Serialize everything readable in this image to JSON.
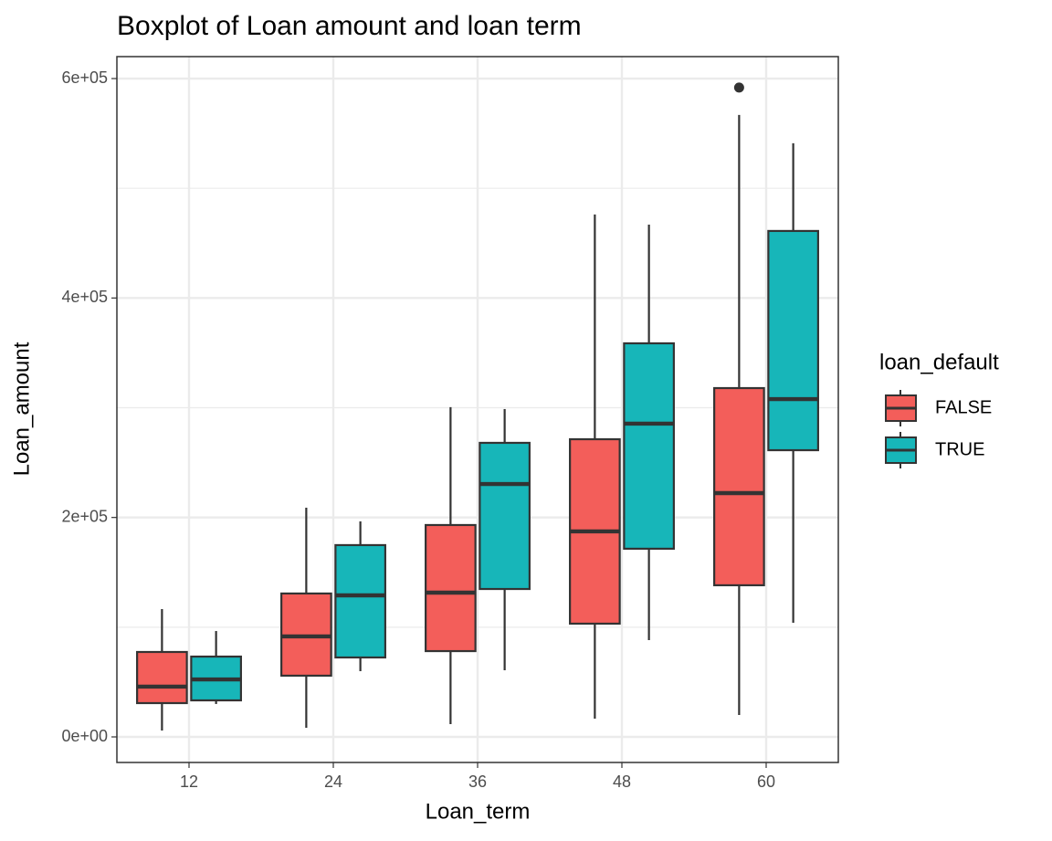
{
  "chart_data": {
    "type": "boxplot",
    "title": "Boxplot of Loan amount and loan term",
    "x_label": "Loan_term",
    "y_label": "Loan_amount",
    "legend_title": "loan_default",
    "categories": [
      "12",
      "24",
      "36",
      "48",
      "60"
    ],
    "ylim": [
      -23300,
      620000
    ],
    "yticks": [
      {
        "value": 0,
        "label": "0e+00"
      },
      {
        "value": 200000,
        "label": "2e+05"
      },
      {
        "value": 400000,
        "label": "4e+05"
      },
      {
        "value": 600000,
        "label": "6e+05"
      }
    ],
    "minor_yticks": [
      100000,
      300000,
      500000
    ],
    "grid": true,
    "legend": "right",
    "series": [
      {
        "name": "FALSE",
        "color": "#f35e5a",
        "whislo": [
          5800,
          8300,
          11700,
          16600,
          20000
        ],
        "q1": [
          30800,
          55800,
          78200,
          103200,
          138200
        ],
        "median": [
          45800,
          91600,
          131500,
          187300,
          222200
        ],
        "q3": [
          77400,
          130700,
          193100,
          271300,
          317900
        ],
        "whishi": [
          116500,
          208900,
          300500,
          476100,
          566800
        ],
        "outliers": [
          {
            "category": "60",
            "value": 591800
          }
        ]
      },
      {
        "name": "TRUE",
        "color": "#17b6b9",
        "whislo": [
          30000,
          59900,
          60800,
          88200,
          104000
        ],
        "q1": [
          33300,
          72400,
          134800,
          171500,
          261300
        ],
        "median": [
          52400,
          129000,
          230500,
          285500,
          307900
        ],
        "q3": [
          73200,
          174800,
          268000,
          358700,
          461100
        ],
        "whishi": [
          96500,
          196400,
          298800,
          466900,
          541000
        ]
      }
    ]
  }
}
